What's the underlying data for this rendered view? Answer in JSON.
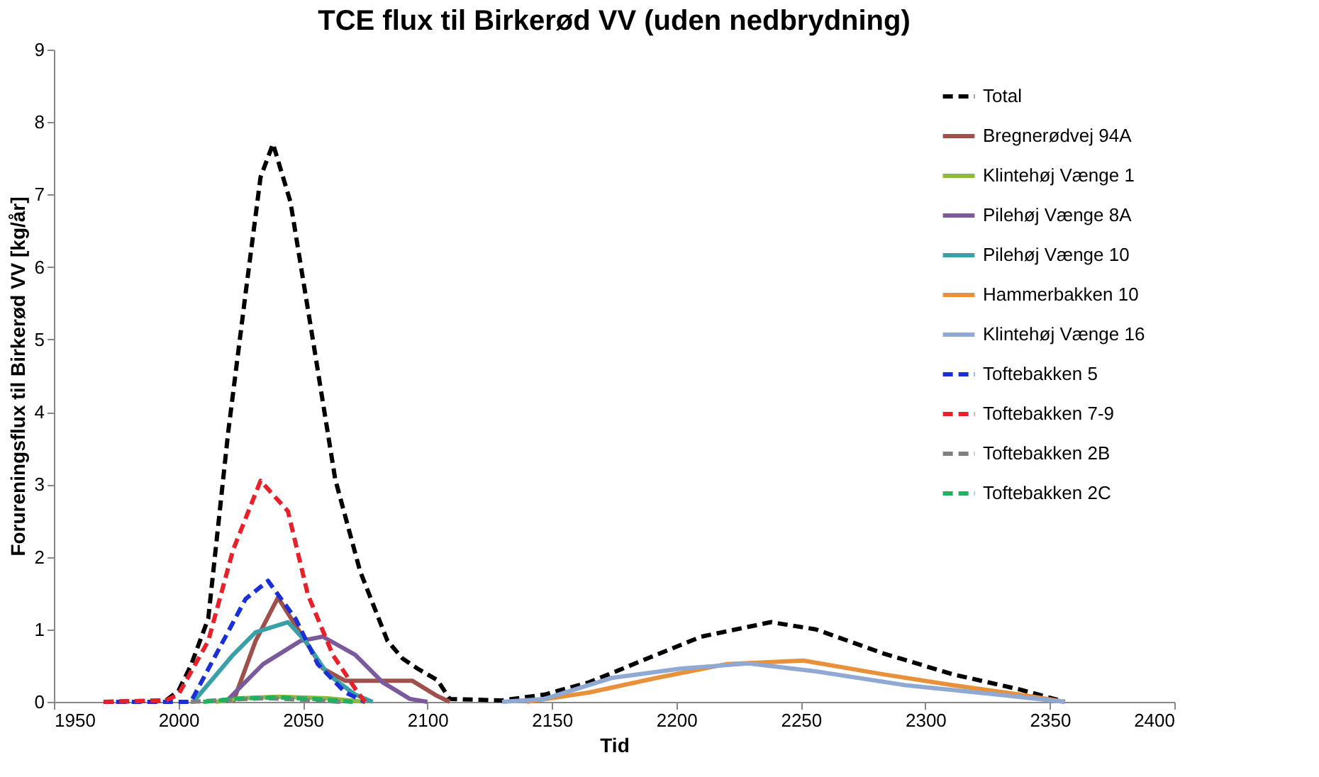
{
  "chart_data": {
    "type": "line",
    "title": "TCE flux til Birkerød VV (uden nedbrydning)",
    "xlabel": "Tid",
    "ylabel": "Forureningsflux til Birkerød VV [kg/år]",
    "xlim": [
      1950,
      2400
    ],
    "xticks": [
      1950,
      2000,
      2050,
      2100,
      2150,
      2200,
      2250,
      2300,
      2350,
      2400
    ],
    "ylim": [
      0,
      9
    ],
    "yticks": [
      0,
      1,
      2,
      3,
      4,
      5,
      6,
      7,
      8,
      9
    ],
    "grid": false,
    "legend": "top right",
    "marker": "none",
    "series": [
      {
        "name": "Total",
        "color": "#000000",
        "line_style": "dashed",
        "x": [
          1970,
          1995,
          2000,
          2005,
          2012,
          2020,
          2027,
          2033,
          2038,
          2045,
          2054,
          2063,
          2073,
          2084,
          2090,
          2096,
          2104,
          2109,
          2130,
          2147,
          2165,
          2192,
          2210,
          2238,
          2256,
          2283,
          2311,
          2338,
          2356
        ],
        "values": [
          0,
          0.02,
          0.15,
          0.5,
          1.15,
          3.72,
          5.64,
          7.24,
          7.7,
          6.9,
          5.0,
          3.07,
          1.8,
          0.84,
          0.6,
          0.46,
          0.3,
          0.04,
          0.02,
          0.1,
          0.27,
          0.65,
          0.9,
          1.1,
          1.0,
          0.67,
          0.38,
          0.17,
          0
        ]
      },
      {
        "name": "Bregnerødvej 94A",
        "color": "#a0504a",
        "line_style": "solid",
        "x": [
          2022,
          2031,
          2040,
          2051,
          2058,
          2067,
          2094,
          2104,
          2109
        ],
        "values": [
          0,
          0.84,
          1.44,
          0.84,
          0.46,
          0.29,
          0.29,
          0.08,
          0
        ]
      },
      {
        "name": "Klintehøj Vænge 1",
        "color": "#8db93f",
        "line_style": "solid",
        "x": [
          2015,
          2025,
          2040,
          2060,
          2075
        ],
        "values": [
          0,
          0.05,
          0.07,
          0.05,
          0
        ]
      },
      {
        "name": "Pilehøj Vænge 8A",
        "color": "#7a5a9a",
        "line_style": "solid",
        "x": [
          2019,
          2034,
          2049,
          2058,
          2071,
          2082,
          2093,
          2100
        ],
        "values": [
          0,
          0.52,
          0.84,
          0.9,
          0.65,
          0.27,
          0.04,
          0
        ]
      },
      {
        "name": "Pilehøj Vænge 10",
        "color": "#3aa0a8",
        "line_style": "solid",
        "x": [
          2006,
          2022,
          2031,
          2044,
          2051,
          2060,
          2071,
          2078
        ],
        "values": [
          0,
          0.65,
          0.96,
          1.1,
          0.84,
          0.38,
          0.1,
          0
        ]
      },
      {
        "name": "Hammerbakken 10",
        "color": "#e8913a",
        "line_style": "solid",
        "x": [
          2140,
          2165,
          2192,
          2220,
          2251,
          2283,
          2311,
          2338,
          2356
        ],
        "values": [
          0,
          0.13,
          0.33,
          0.52,
          0.57,
          0.38,
          0.23,
          0.1,
          0
        ]
      },
      {
        "name": "Klintehøj Vænge 16",
        "color": "#8fa9d3",
        "line_style": "solid",
        "x": [
          2130,
          2147,
          2174,
          2202,
          2229,
          2256,
          2292,
          2329,
          2356
        ],
        "values": [
          0,
          0.04,
          0.33,
          0.46,
          0.53,
          0.42,
          0.23,
          0.1,
          0
        ]
      },
      {
        "name": "Toftebakken 5",
        "color": "#1a2fd6",
        "line_style": "dashed",
        "x": [
          1975,
          2005,
          2018,
          2027,
          2036,
          2047,
          2056,
          2067,
          2075
        ],
        "values": [
          0,
          0,
          0.84,
          1.42,
          1.67,
          1.15,
          0.52,
          0.13,
          0
        ]
      },
      {
        "name": "Toftebakken 7-9",
        "color": "#e8202a",
        "line_style": "dashed",
        "x": [
          1970,
          1995,
          2000,
          2012,
          2022,
          2033,
          2044,
          2052,
          2062,
          2072,
          2075
        ],
        "values": [
          0,
          0.02,
          0.1,
          0.84,
          2.1,
          3.05,
          2.63,
          1.48,
          0.65,
          0.13,
          0
        ]
      },
      {
        "name": "Toftebakken 2B",
        "color": "#808080",
        "line_style": "dashed",
        "x": [
          2005,
          2020,
          2035,
          2050,
          2065
        ],
        "values": [
          0,
          0.03,
          0.05,
          0.03,
          0
        ]
      },
      {
        "name": "Toftebakken 2C",
        "color": "#1fb060",
        "line_style": "dashed",
        "x": [
          2010,
          2025,
          2040,
          2055,
          2070
        ],
        "values": [
          0,
          0.05,
          0.06,
          0.04,
          0
        ]
      }
    ]
  }
}
